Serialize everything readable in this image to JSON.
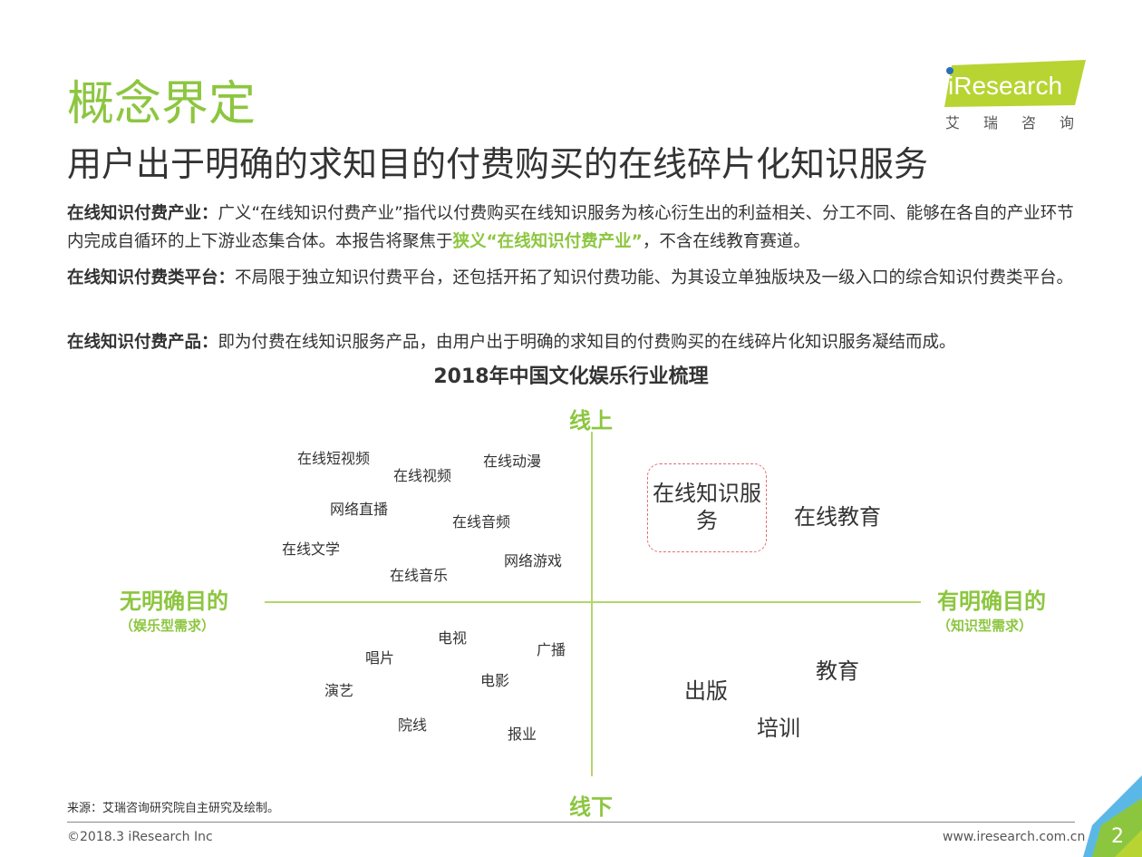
{
  "header": {
    "title": "概念界定",
    "subtitle": "用户出于明确的求知目的付费购买的在线碎片化知识服务"
  },
  "logo": {
    "text": "iResearch",
    "cn": "艾瑞咨询"
  },
  "paragraphs": [
    {
      "term": "在线知识付费产业：",
      "text1": "广义“在线知识付费产业”指代以付费购买在线知识服务为核心衍生出的利益相关、分工不同、能够在各自的产业环节内完成自循环的上下游业态集合体。本报告将聚焦于",
      "highlight": "狭义“在线知识付费产业”",
      "text2": "，不含在线教育赛道。"
    },
    {
      "term": "在线知识付费类平台：",
      "text1": "不局限于独立知识付费平台，还包括开拓了知识付费功能、为其设立单独版块及一级入口的综合知识付费类平台。"
    },
    {
      "term": "在线知识付费产品：",
      "text1": "即为付费在线知识服务产品，由用户出于明确的求知目的付费购买的在线碎片化知识服务凝结而成。"
    }
  ],
  "diagram": {
    "title": "2018年中国文化娱乐行业梳理",
    "axes": {
      "top": "线上",
      "bottom": "线下",
      "left": "无明确目的",
      "left_sub": "（娱乐型需求）",
      "right": "有明确目的",
      "right_sub": "（知识型需求）"
    },
    "top_left": [
      "在线短视频",
      "在线视频",
      "在线动漫",
      "网络直播",
      "在线音频",
      "在线文学",
      "网络游戏",
      "在线音乐"
    ],
    "top_right": {
      "highlighted": "在线知识服务",
      "other": "在线教育"
    },
    "bottom_left": [
      "电视",
      "广播",
      "唱片",
      "电影",
      "演艺",
      "院线",
      "报业"
    ],
    "bottom_right": [
      "教育",
      "出版",
      "培训"
    ]
  },
  "colors": {
    "accent": "#8cc63f",
    "highlight_border": "#e0707a"
  },
  "footer": {
    "source": "来源：艾瑞咨询研究院自主研究及绘制。",
    "copyright": "©2018.3 iResearch Inc",
    "url": "www.iresearch.com.cn",
    "page": "2"
  }
}
